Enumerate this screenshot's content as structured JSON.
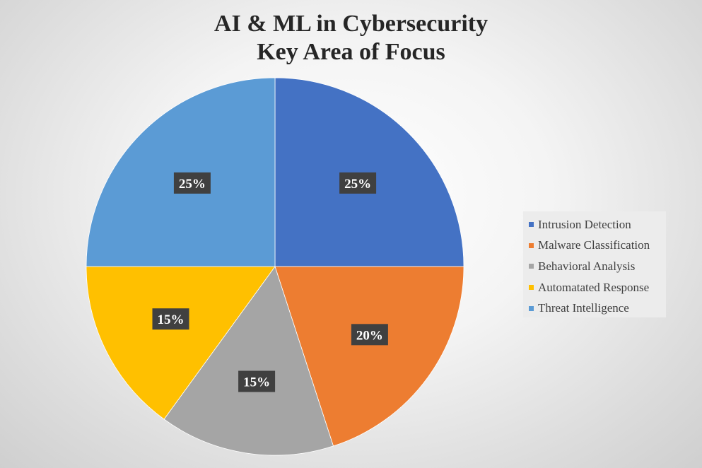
{
  "chart_data": {
    "type": "pie",
    "title_lines": [
      "AI & ML in Cybersecurity",
      "Key Area of Focus"
    ],
    "categories": [
      "Intrusion Detection",
      "Malware Classification",
      "Behavioral Analysis",
      "Automatated Response",
      "Threat Intelligence"
    ],
    "values": [
      25,
      20,
      15,
      15,
      25
    ],
    "data_labels": [
      "25%",
      "20%",
      "15%",
      "15%",
      "25%"
    ],
    "colors": [
      "#4472C4",
      "#ED7D31",
      "#A5A5A5",
      "#FFC000",
      "#5B9BD5"
    ],
    "start_angle": "12 o'clock",
    "direction": "clockwise",
    "legend_position": "right"
  }
}
